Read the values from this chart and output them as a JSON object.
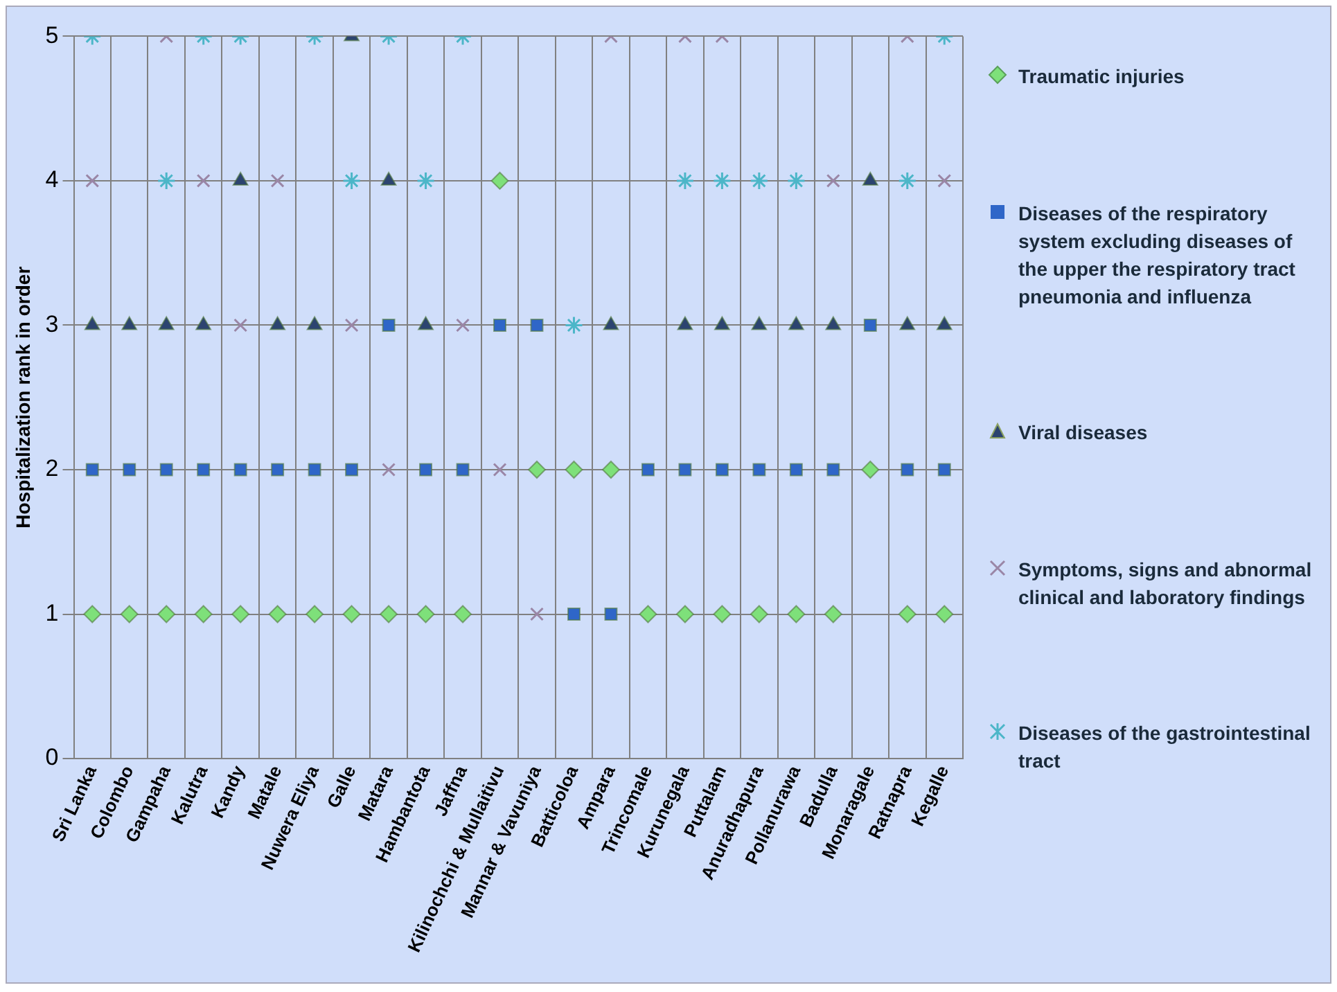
{
  "chart_data": {
    "type": "scatter",
    "ylabel": "Hospitalization rank in order",
    "categories": [
      "Sri Lanka",
      "Colombo",
      "Gampaha",
      "Kalutra",
      "Kandy",
      "Matale",
      "Nuwera Eliya",
      "Galle",
      "Matara",
      "Hambantota",
      "Jaffna",
      "Kilinochchi & Mullaitivu",
      "Mannar & Vavuniya",
      "Batticoloa",
      "Ampara",
      "Trincomale",
      "Kurunegala",
      "Puttalam",
      "Anuradhapura",
      "Pollanurawa",
      "Badulla",
      "Monaragale",
      "Ratnapra",
      "Kegalle"
    ],
    "series": [
      {
        "name": "Traumatic injuries",
        "color": "#7ee07a",
        "marker": "diamond",
        "values": [
          1,
          1,
          1,
          1,
          1,
          1,
          1,
          1,
          1,
          1,
          1,
          4,
          2,
          2,
          2,
          1,
          1,
          1,
          1,
          1,
          1,
          2,
          1,
          1
        ]
      },
      {
        "name": "Diseases of the respiratory system excluding diseases of the upper the respiratory tract pneumonia and influenza",
        "color": "#2f66c8",
        "marker": "square",
        "values": [
          2,
          2,
          2,
          2,
          2,
          2,
          2,
          2,
          3,
          2,
          2,
          3,
          3,
          1,
          1,
          2,
          2,
          2,
          2,
          2,
          2,
          3,
          2,
          2
        ]
      },
      {
        "name": "Viral diseases",
        "color": "#2c4470",
        "marker": "triangle",
        "values": [
          3,
          3,
          3,
          3,
          4,
          3,
          3,
          5,
          4,
          3,
          null,
          null,
          null,
          null,
          3,
          null,
          3,
          3,
          3,
          3,
          3,
          4,
          3,
          3
        ]
      },
      {
        "name": "Symptoms, signs and abnormal clinical and laboratory findings",
        "color": "#9a86a6",
        "marker": "cross",
        "values": [
          4,
          null,
          5,
          4,
          3,
          4,
          null,
          3,
          2,
          null,
          3,
          2,
          1,
          null,
          5,
          null,
          5,
          5,
          null,
          null,
          4,
          null,
          5,
          4
        ]
      },
      {
        "name": "Diseases of the gastrointestinal tract",
        "color": "#4cb6c8",
        "marker": "cross",
        "values": [
          5,
          null,
          4,
          5,
          5,
          null,
          5,
          4,
          5,
          4,
          5,
          null,
          null,
          3,
          null,
          null,
          4,
          4,
          4,
          4,
          null,
          null,
          4,
          5
        ]
      }
    ],
    "ylim": [
      0,
      5
    ],
    "yticks": [
      0,
      1,
      2,
      3,
      4,
      5
    ],
    "grid": true,
    "legend": "right"
  }
}
